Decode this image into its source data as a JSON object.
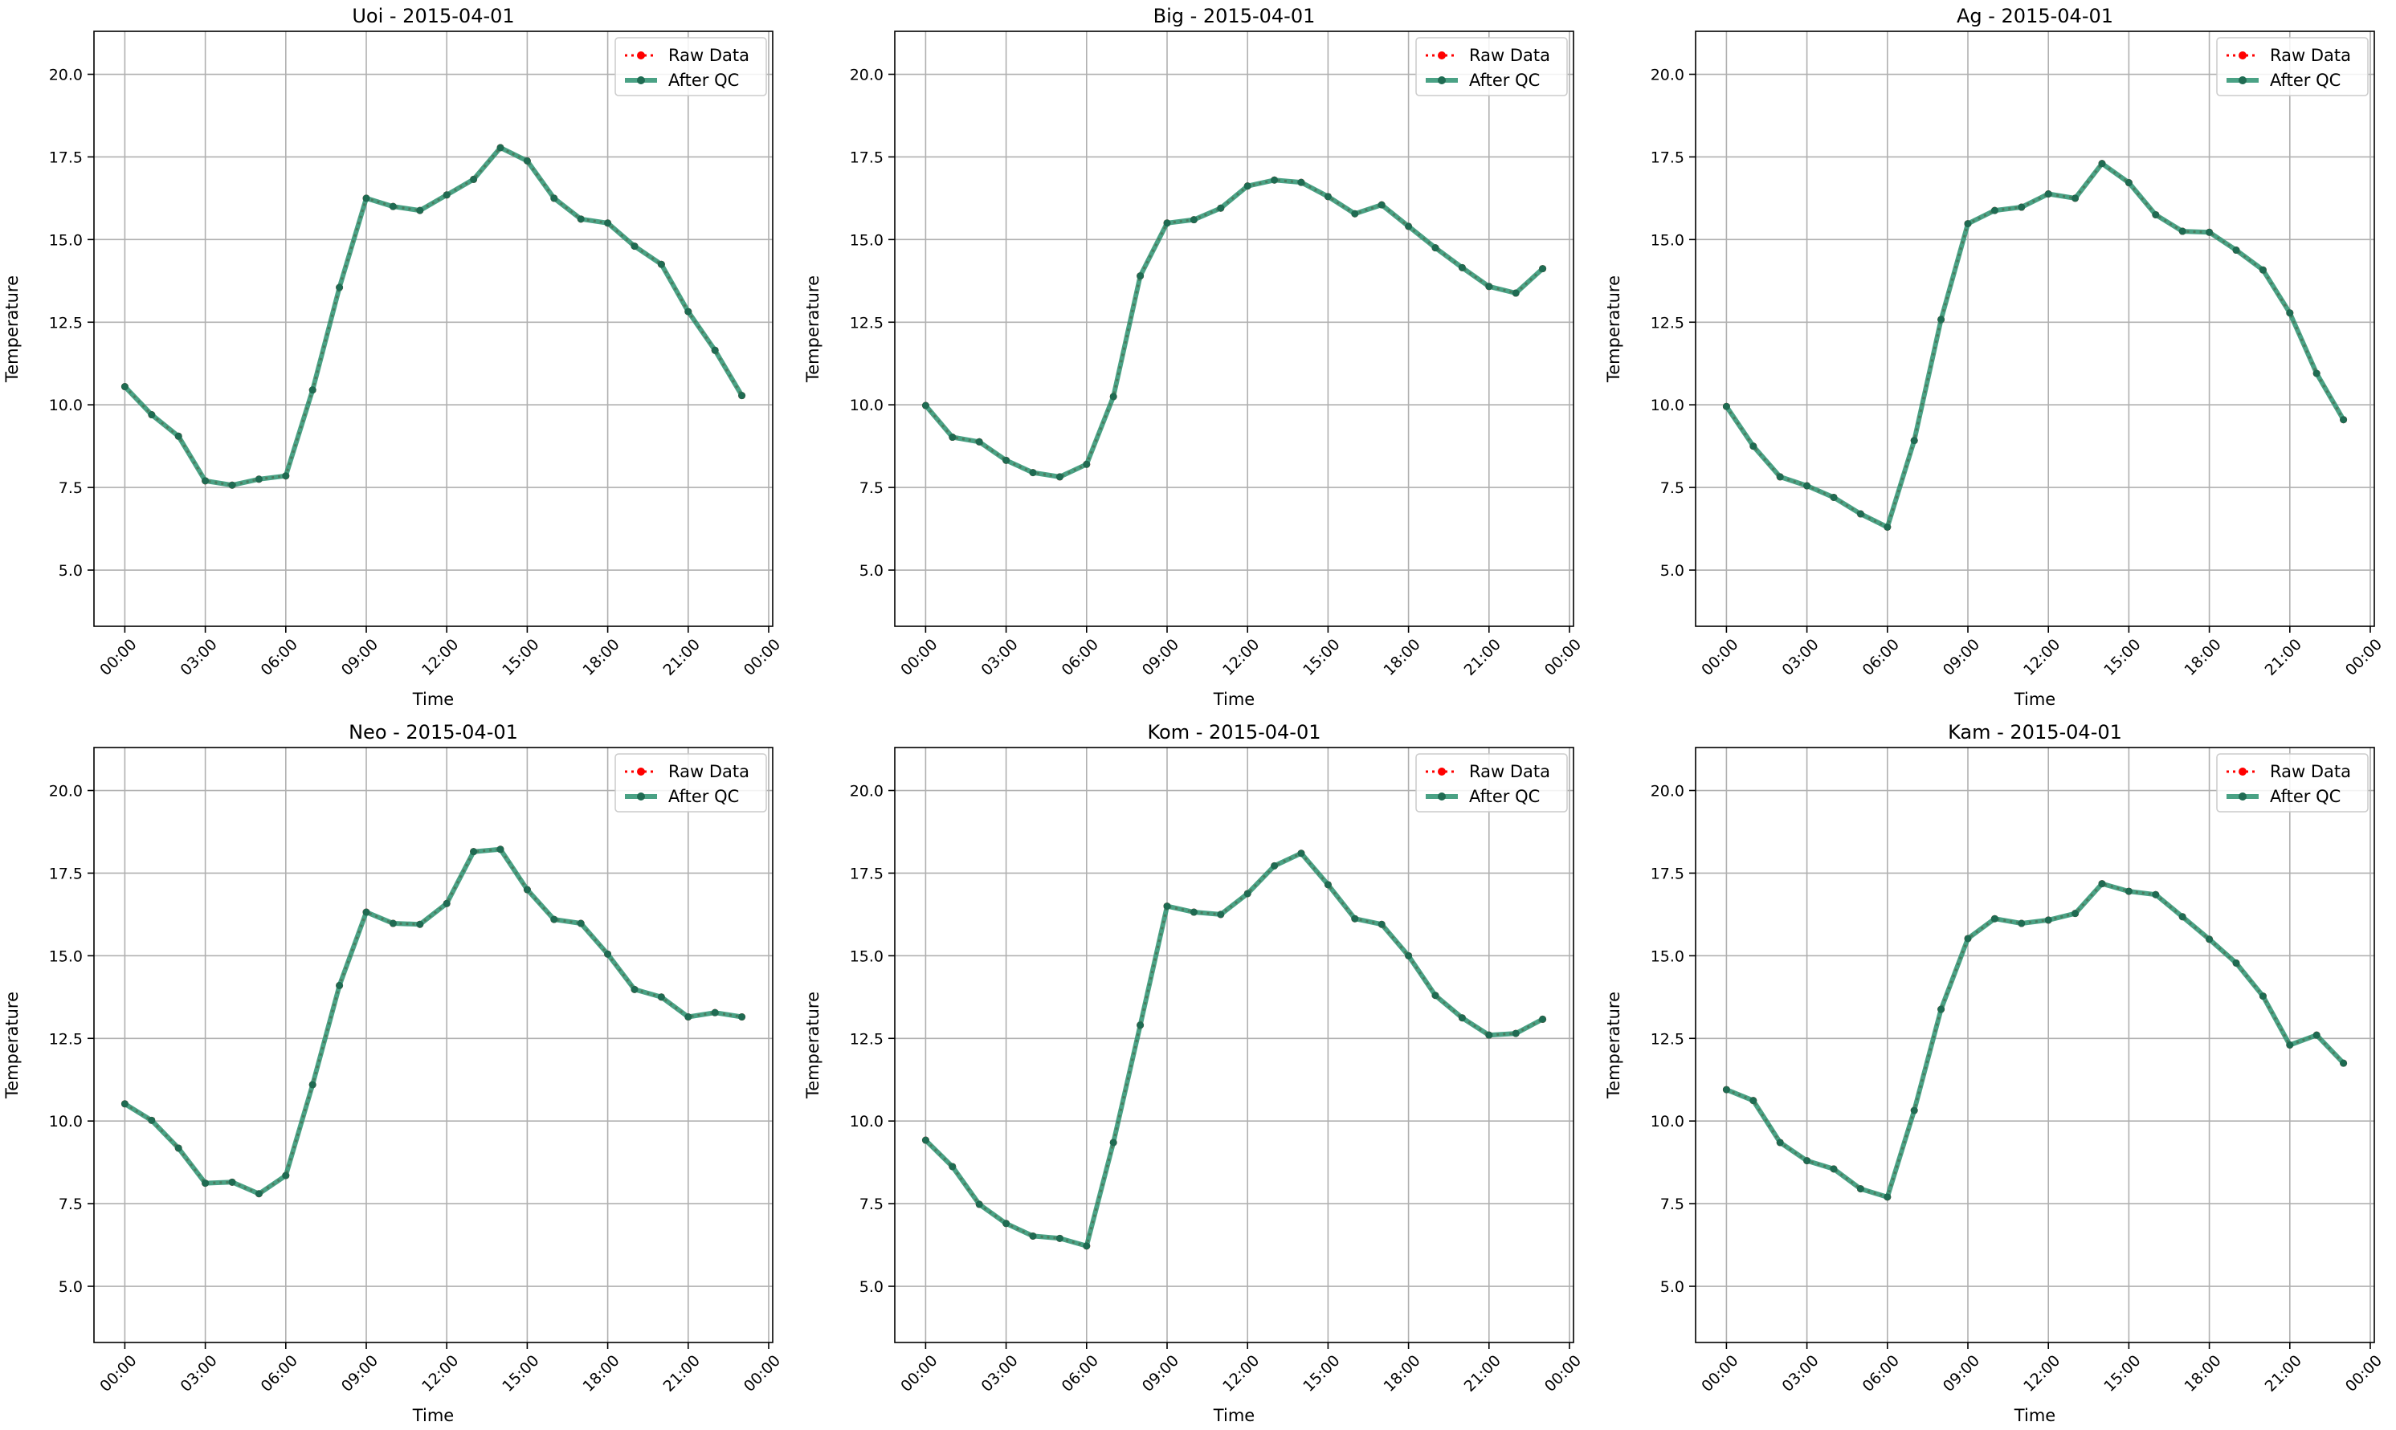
{
  "figure": {
    "raw_color": "#ff0000",
    "qc_color": "#2a9270",
    "qc_marker_color": "#1f6b52",
    "grid_color": "#b0b0b0"
  },
  "chart_data": [
    {
      "type": "line",
      "title": "Uoi - 2015-04-01",
      "xlabel": "Time",
      "ylabel": "Temperature",
      "x_ticks": [
        "00:00",
        "03:00",
        "06:00",
        "09:00",
        "12:00",
        "15:00",
        "18:00",
        "21:00",
        "00:00"
      ],
      "y_ticks": [
        "5.0",
        "7.5",
        "10.0",
        "12.5",
        "15.0",
        "17.5",
        "20.0"
      ],
      "ylim": [
        3.3,
        21.3
      ],
      "xlim_hours": [
        -1.15,
        24.15
      ],
      "grid": true,
      "legend": "top-right",
      "x_hours": [
        0,
        1,
        2,
        3,
        4,
        5,
        6,
        7,
        8,
        9,
        10,
        11,
        12,
        13,
        14,
        15,
        16,
        17,
        18,
        19,
        20,
        21,
        22,
        23
      ],
      "series": [
        {
          "name": "Raw Data",
          "values": [
            10.55,
            9.7,
            9.05,
            7.7,
            7.57,
            7.75,
            7.85,
            10.45,
            13.55,
            16.25,
            16.0,
            15.88,
            16.35,
            16.82,
            17.78,
            17.38,
            16.25,
            15.62,
            15.5,
            14.8,
            14.25,
            12.82,
            11.65,
            10.28
          ]
        },
        {
          "name": "After QC",
          "values": [
            10.55,
            9.7,
            9.05,
            7.7,
            7.57,
            7.75,
            7.85,
            10.45,
            13.55,
            16.25,
            16.0,
            15.88,
            16.35,
            16.82,
            17.78,
            17.38,
            16.25,
            15.62,
            15.5,
            14.8,
            14.25,
            12.82,
            11.65,
            10.28
          ]
        }
      ]
    },
    {
      "type": "line",
      "title": "Big - 2015-04-01",
      "xlabel": "Time",
      "ylabel": "Temperature",
      "x_ticks": [
        "00:00",
        "03:00",
        "06:00",
        "09:00",
        "12:00",
        "15:00",
        "18:00",
        "21:00",
        "00:00"
      ],
      "y_ticks": [
        "5.0",
        "7.5",
        "10.0",
        "12.5",
        "15.0",
        "17.5",
        "20.0"
      ],
      "ylim": [
        3.3,
        21.3
      ],
      "xlim_hours": [
        -1.15,
        24.15
      ],
      "grid": true,
      "legend": "top-right",
      "x_hours": [
        0,
        1,
        2,
        3,
        4,
        5,
        6,
        7,
        8,
        9,
        10,
        11,
        12,
        13,
        14,
        15,
        16,
        17,
        18,
        19,
        20,
        21,
        22,
        23
      ],
      "series": [
        {
          "name": "Raw Data",
          "values": [
            9.98,
            9.02,
            8.88,
            8.32,
            7.95,
            7.82,
            8.2,
            10.25,
            13.9,
            15.5,
            15.6,
            15.95,
            16.62,
            16.8,
            16.73,
            16.3,
            15.78,
            16.05,
            15.4,
            14.75,
            14.15,
            13.58,
            13.38,
            14.12
          ]
        },
        {
          "name": "After QC",
          "values": [
            9.98,
            9.02,
            8.88,
            8.32,
            7.95,
            7.82,
            8.2,
            10.25,
            13.9,
            15.5,
            15.6,
            15.95,
            16.62,
            16.8,
            16.73,
            16.3,
            15.78,
            16.05,
            15.4,
            14.75,
            14.15,
            13.58,
            13.38,
            14.12
          ]
        }
      ]
    },
    {
      "type": "line",
      "title": "Ag - 2015-04-01",
      "xlabel": "Time",
      "ylabel": "Temperature",
      "x_ticks": [
        "00:00",
        "03:00",
        "06:00",
        "09:00",
        "12:00",
        "15:00",
        "18:00",
        "21:00",
        "00:00"
      ],
      "y_ticks": [
        "5.0",
        "7.5",
        "10.0",
        "12.5",
        "15.0",
        "17.5",
        "20.0"
      ],
      "ylim": [
        3.3,
        21.3
      ],
      "xlim_hours": [
        -1.15,
        24.15
      ],
      "grid": true,
      "legend": "top-right",
      "x_hours": [
        0,
        1,
        2,
        3,
        4,
        5,
        6,
        7,
        8,
        9,
        10,
        11,
        12,
        13,
        14,
        15,
        16,
        17,
        18,
        19,
        20,
        21,
        22,
        23
      ],
      "series": [
        {
          "name": "Raw Data",
          "values": [
            9.95,
            8.75,
            7.82,
            7.55,
            7.2,
            6.7,
            6.3,
            8.92,
            12.58,
            15.48,
            15.88,
            15.98,
            16.38,
            16.25,
            17.3,
            16.72,
            15.75,
            15.25,
            15.22,
            14.68,
            14.08,
            12.78,
            10.95,
            9.55
          ]
        },
        {
          "name": "After QC",
          "values": [
            9.95,
            8.75,
            7.82,
            7.55,
            7.2,
            6.7,
            6.3,
            8.92,
            12.58,
            15.48,
            15.88,
            15.98,
            16.38,
            16.25,
            17.3,
            16.72,
            15.75,
            15.25,
            15.22,
            14.68,
            14.08,
            12.78,
            10.95,
            9.55
          ]
        }
      ]
    },
    {
      "type": "line",
      "title": "Neo - 2015-04-01",
      "xlabel": "Time",
      "ylabel": "Temperature",
      "x_ticks": [
        "00:00",
        "03:00",
        "06:00",
        "09:00",
        "12:00",
        "15:00",
        "18:00",
        "21:00",
        "00:00"
      ],
      "y_ticks": [
        "5.0",
        "7.5",
        "10.0",
        "12.5",
        "15.0",
        "17.5",
        "20.0"
      ],
      "ylim": [
        3.3,
        21.3
      ],
      "xlim_hours": [
        -1.15,
        24.15
      ],
      "grid": true,
      "legend": "top-right",
      "x_hours": [
        0,
        1,
        2,
        3,
        4,
        5,
        6,
        7,
        8,
        9,
        10,
        11,
        12,
        13,
        14,
        15,
        16,
        17,
        18,
        19,
        20,
        21,
        22,
        23
      ],
      "series": [
        {
          "name": "Raw Data",
          "values": [
            10.52,
            10.02,
            9.18,
            8.12,
            8.15,
            7.8,
            8.35,
            11.1,
            14.1,
            16.32,
            15.98,
            15.95,
            16.58,
            18.15,
            18.22,
            17.0,
            16.1,
            15.98,
            15.05,
            13.98,
            13.75,
            13.15,
            13.28,
            13.15
          ]
        },
        {
          "name": "After QC",
          "values": [
            10.52,
            10.02,
            9.18,
            8.12,
            8.15,
            7.8,
            8.35,
            11.1,
            14.1,
            16.32,
            15.98,
            15.95,
            16.58,
            18.15,
            18.22,
            17.0,
            16.1,
            15.98,
            15.05,
            13.98,
            13.75,
            13.15,
            13.28,
            13.15
          ]
        }
      ]
    },
    {
      "type": "line",
      "title": "Kom - 2015-04-01",
      "xlabel": "Time",
      "ylabel": "Temperature",
      "x_ticks": [
        "00:00",
        "03:00",
        "06:00",
        "09:00",
        "12:00",
        "15:00",
        "18:00",
        "21:00",
        "00:00"
      ],
      "y_ticks": [
        "5.0",
        "7.5",
        "10.0",
        "12.5",
        "15.0",
        "17.5",
        "20.0"
      ],
      "ylim": [
        3.3,
        21.3
      ],
      "xlim_hours": [
        -1.15,
        24.15
      ],
      "grid": true,
      "legend": "top-right",
      "x_hours": [
        0,
        1,
        2,
        3,
        4,
        5,
        6,
        7,
        8,
        9,
        10,
        11,
        12,
        13,
        14,
        15,
        16,
        17,
        18,
        19,
        20,
        21,
        22,
        23
      ],
      "series": [
        {
          "name": "Raw Data",
          "values": [
            9.42,
            8.62,
            7.48,
            6.9,
            6.52,
            6.45,
            6.22,
            9.35,
            12.9,
            16.5,
            16.32,
            16.25,
            16.88,
            17.72,
            18.1,
            17.15,
            16.12,
            15.95,
            15.0,
            13.8,
            13.12,
            12.6,
            12.65,
            13.08
          ]
        },
        {
          "name": "After QC",
          "values": [
            9.42,
            8.62,
            7.48,
            6.9,
            6.52,
            6.45,
            6.22,
            9.35,
            12.9,
            16.5,
            16.32,
            16.25,
            16.88,
            17.72,
            18.1,
            17.15,
            16.12,
            15.95,
            15.0,
            13.8,
            13.12,
            12.6,
            12.65,
            13.08
          ]
        }
      ]
    },
    {
      "type": "line",
      "title": "Kam - 2015-04-01",
      "xlabel": "Time",
      "ylabel": "Temperature",
      "x_ticks": [
        "00:00",
        "03:00",
        "06:00",
        "09:00",
        "12:00",
        "15:00",
        "18:00",
        "21:00",
        "00:00"
      ],
      "y_ticks": [
        "5.0",
        "7.5",
        "10.0",
        "12.5",
        "15.0",
        "17.5",
        "20.0"
      ],
      "ylim": [
        3.3,
        21.3
      ],
      "xlim_hours": [
        -1.15,
        24.15
      ],
      "grid": true,
      "legend": "top-right",
      "x_hours": [
        0,
        1,
        2,
        3,
        4,
        5,
        6,
        7,
        8,
        9,
        10,
        11,
        12,
        13,
        14,
        15,
        16,
        17,
        18,
        19,
        20,
        21,
        22,
        23
      ],
      "series": [
        {
          "name": "Raw Data",
          "values": [
            10.95,
            10.62,
            9.35,
            8.8,
            8.55,
            7.95,
            7.7,
            10.32,
            13.38,
            15.52,
            16.12,
            15.98,
            16.08,
            16.28,
            17.18,
            16.95,
            16.85,
            16.18,
            15.5,
            14.78,
            13.78,
            12.3,
            12.6,
            11.75
          ]
        },
        {
          "name": "After QC",
          "values": [
            10.95,
            10.62,
            9.35,
            8.8,
            8.55,
            7.95,
            7.7,
            10.32,
            13.38,
            15.52,
            16.12,
            15.98,
            16.08,
            16.28,
            17.18,
            16.95,
            16.85,
            16.18,
            15.5,
            14.78,
            13.78,
            12.3,
            12.6,
            11.75
          ]
        }
      ]
    }
  ]
}
